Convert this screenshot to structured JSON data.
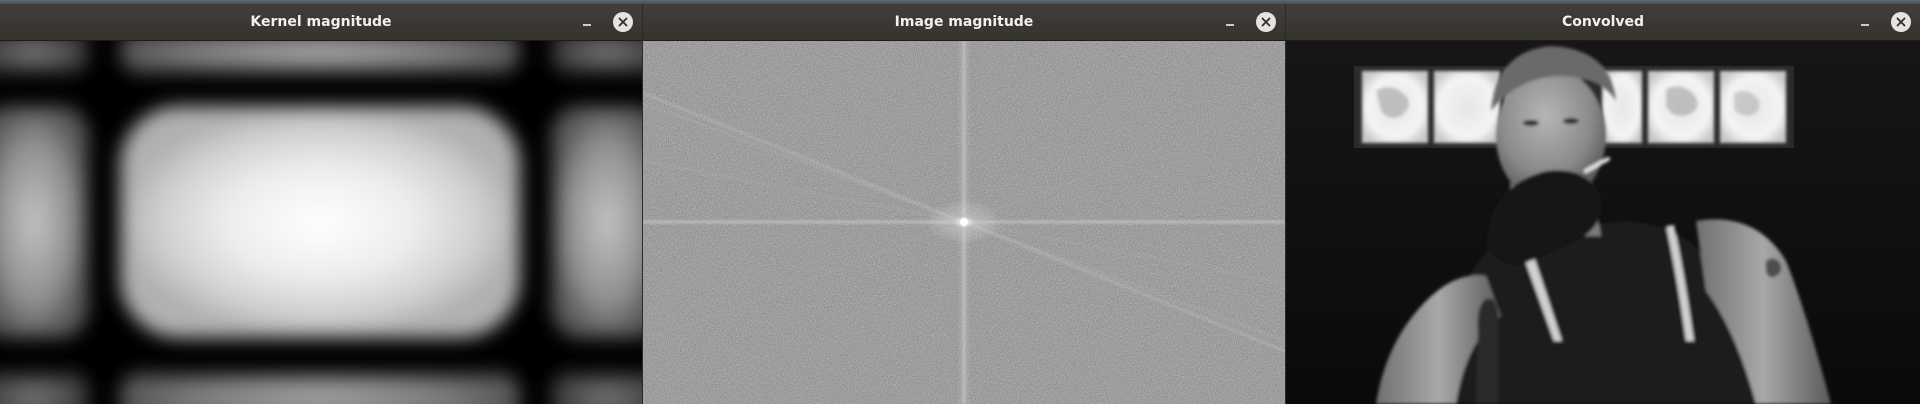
{
  "windows": [
    {
      "title": "Kernel magnitude",
      "minimize_icon": "minimize-icon",
      "close_icon": "close-icon"
    },
    {
      "title": "Image magnitude",
      "minimize_icon": "minimize-icon",
      "close_icon": "close-icon"
    },
    {
      "title": "Convolved",
      "minimize_icon": "minimize-icon",
      "close_icon": "close-icon"
    }
  ],
  "colors": {
    "titlebar": "#3a3734",
    "title_text": "#f2f1ef",
    "close_button": "#e6e4e1",
    "fft_gray": "#8a8a8a"
  }
}
